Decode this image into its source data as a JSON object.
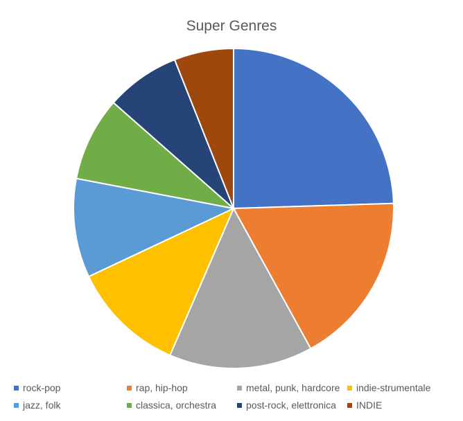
{
  "chart_data": {
    "type": "pie",
    "title": "Super Genres",
    "categories": [
      "rock-pop",
      "rap, hip-hop",
      "metal, punk, hardcore",
      "indie-strumentale",
      "jazz, folk",
      "classica, orchestra",
      "post-rock, elettronica",
      "INDIE"
    ],
    "values": [
      24.5,
      17.5,
      14.5,
      11.5,
      10.0,
      8.5,
      7.5,
      6.0
    ],
    "colors": [
      "#4472C4",
      "#ED7D31",
      "#A5A5A5",
      "#FFC000",
      "#5B9BD5",
      "#70AD47",
      "#264478",
      "#9E480E"
    ],
    "legend_position": "bottom"
  }
}
